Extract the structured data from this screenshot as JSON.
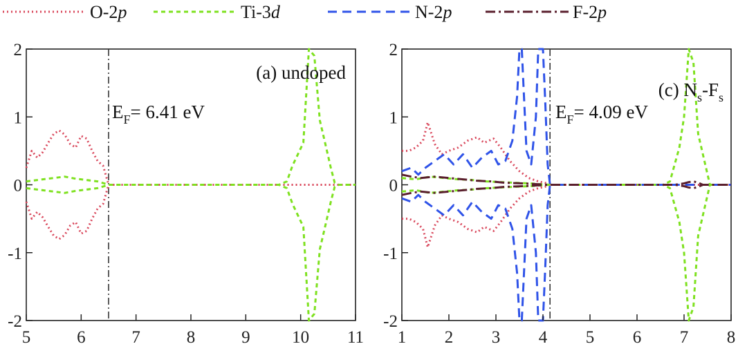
{
  "legend": {
    "placement": "top",
    "items": [
      {
        "base": "O-2",
        "ital": "p",
        "color": "#d9475b",
        "dash": "2,4"
      },
      {
        "base": "Ti-3",
        "ital": "d",
        "color": "#7ee11f",
        "dash": "6,5"
      },
      {
        "base": "N-2",
        "ital": "p",
        "color": "#2f53e8",
        "dash": "13,8"
      },
      {
        "base": "F-2",
        "ital": "p",
        "color": "#5a1f2d",
        "dash": "14,5,3,5"
      }
    ]
  },
  "chart_data": [
    {
      "type": "line",
      "panel_label": "(a) undoped",
      "fermi_label": {
        "main": "E",
        "sub": "F",
        "rest": "= 6.41 eV"
      },
      "fermi_level": 6.5,
      "xlim": [
        5,
        11
      ],
      "ylim": [
        -2,
        2
      ],
      "xticks": [
        "5",
        "6",
        "7",
        "8",
        "9",
        "10",
        "11"
      ],
      "yticks": [
        "2",
        "1",
        "0",
        "-1",
        "-2"
      ],
      "grid": false,
      "series": [
        {
          "name": "O-2p",
          "color": "#d9475b",
          "dash": "2,4",
          "symmetric": true,
          "x": [
            5.0,
            5.1,
            5.2,
            5.3,
            5.4,
            5.5,
            5.6,
            5.7,
            5.8,
            5.9,
            6.0,
            6.1,
            6.2,
            6.3,
            6.4,
            6.5,
            11.0
          ],
          "y": [
            0.25,
            0.5,
            0.4,
            0.48,
            0.62,
            0.75,
            0.8,
            0.74,
            0.6,
            0.55,
            0.72,
            0.68,
            0.5,
            0.35,
            0.28,
            0.0,
            0.0
          ]
        },
        {
          "name": "Ti-3d",
          "color": "#7ee11f",
          "dash": "6,5",
          "symmetric": true,
          "x": [
            5.0,
            5.3,
            5.5,
            5.7,
            5.9,
            6.1,
            6.3,
            6.5,
            9.6,
            9.75,
            9.85,
            9.95,
            10.05,
            10.15,
            10.25,
            10.35,
            10.45,
            10.55,
            10.62,
            10.7,
            11.0
          ],
          "y": [
            0.05,
            0.08,
            0.1,
            0.12,
            0.09,
            0.07,
            0.05,
            0.0,
            0.0,
            0.05,
            0.28,
            0.45,
            0.62,
            2.0,
            1.9,
            0.95,
            0.6,
            0.25,
            0.03,
            0.0,
            0.0
          ]
        }
      ]
    },
    {
      "type": "line",
      "panel_label": {
        "main": "(c) N",
        "sub1": "s",
        "mid": "-F",
        "sub2": "s"
      },
      "fermi_label": {
        "main": "E",
        "sub": "F",
        "rest": "= 4.09 eV"
      },
      "fermi_level": 4.15,
      "xlim": [
        1,
        8
      ],
      "ylim": [
        -2,
        2
      ],
      "xticks": [
        "1",
        "2",
        "3",
        "4",
        "5",
        "6",
        "7",
        "8"
      ],
      "yticks": [
        "2",
        "1",
        "0",
        "-1",
        "-2"
      ],
      "grid": false,
      "series": [
        {
          "name": "O-2p",
          "color": "#d9475b",
          "dash": "2,4",
          "symmetric": true,
          "x": [
            1.0,
            1.15,
            1.3,
            1.45,
            1.55,
            1.7,
            1.85,
            2.0,
            2.2,
            2.4,
            2.6,
            2.75,
            2.95,
            3.1,
            3.3,
            3.5,
            3.7,
            3.9,
            4.1,
            4.15,
            8.0
          ],
          "y": [
            0.5,
            0.5,
            0.55,
            0.65,
            0.92,
            0.6,
            0.45,
            0.5,
            0.55,
            0.65,
            0.7,
            0.62,
            0.68,
            0.55,
            0.35,
            0.2,
            0.1,
            0.05,
            0.02,
            0.0,
            0.0
          ]
        },
        {
          "name": "Ti-3d",
          "color": "#7ee11f",
          "dash": "6,5",
          "symmetric": true,
          "x": [
            1.0,
            1.3,
            1.6,
            1.9,
            2.2,
            2.5,
            2.8,
            3.1,
            3.4,
            3.7,
            4.15,
            6.55,
            6.7,
            6.9,
            7.0,
            7.1,
            7.2,
            7.3,
            7.45,
            7.55,
            8.0
          ],
          "y": [
            0.1,
            0.08,
            0.12,
            0.1,
            0.08,
            0.07,
            0.05,
            0.04,
            0.03,
            0.02,
            0.0,
            0.0,
            0.05,
            0.55,
            1.0,
            2.0,
            1.8,
            0.75,
            0.3,
            0.0,
            0.0
          ]
        },
        {
          "name": "N-2p",
          "color": "#2f53e8",
          "dash": "13,8",
          "symmetric": true,
          "x": [
            1.0,
            1.2,
            1.35,
            1.5,
            1.7,
            1.9,
            2.1,
            2.3,
            2.5,
            2.7,
            2.9,
            3.05,
            3.2,
            3.35,
            3.45,
            3.5,
            3.55,
            3.65,
            3.75,
            3.85,
            3.9,
            3.95,
            4.0,
            4.05,
            4.1,
            4.15,
            8.0
          ],
          "y": [
            0.2,
            0.25,
            0.15,
            0.25,
            0.35,
            0.45,
            0.3,
            0.45,
            0.25,
            0.4,
            0.5,
            0.3,
            0.35,
            0.65,
            1.3,
            2.0,
            2.0,
            0.5,
            0.3,
            1.0,
            2.0,
            2.0,
            2.0,
            1.2,
            0.3,
            0.0,
            0.0
          ]
        },
        {
          "name": "F-2p",
          "color": "#5a1f2d",
          "dash": "14,5,3,5",
          "symmetric": true,
          "x": [
            1.0,
            1.2,
            1.4,
            1.7,
            2.0,
            2.3,
            2.6,
            2.9,
            3.2,
            3.6,
            4.1,
            6.8,
            7.0,
            7.1,
            7.2,
            7.3,
            7.4,
            8.0
          ],
          "y": [
            0.15,
            0.12,
            0.1,
            0.12,
            0.1,
            0.08,
            0.06,
            0.05,
            0.03,
            0.02,
            0.0,
            0.0,
            0.02,
            0.04,
            0.05,
            0.03,
            0.0,
            0.0
          ]
        }
      ]
    }
  ]
}
